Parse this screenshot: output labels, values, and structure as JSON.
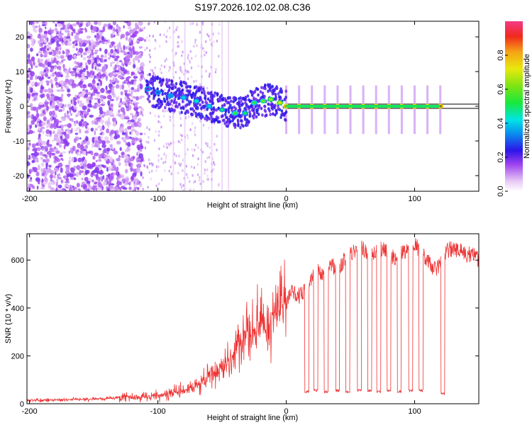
{
  "chart_data": [
    {
      "type": "heatmap",
      "title": "S197.2026.102.02.08.C36",
      "xlabel": "Height of straight line (km)",
      "ylabel": "Frequency (Hz)",
      "xlim": [
        -202,
        150
      ],
      "ylim": [
        -24.5,
        24.5
      ],
      "x_ticks": [
        -200,
        -100,
        0,
        100
      ],
      "x_tick_labels": [
        "-200",
        "-100",
        "0",
        "100"
      ],
      "y_ticks": [
        -20,
        -10,
        0,
        10,
        20
      ],
      "y_tick_labels": [
        "-20",
        "-10",
        "0",
        "10",
        "20"
      ],
      "reference_line_y": 0,
      "colorbar": {
        "label": "Normalized spectral amplitude",
        "range": [
          0,
          1
        ],
        "ticks": [
          0.0,
          0.2,
          0.4,
          0.6,
          0.8
        ],
        "tick_labels": [
          "0.0",
          "0.2",
          "0.4",
          "0.6",
          "0.8"
        ]
      },
      "tone_track": {
        "x": [
          -108,
          -100,
          -90,
          -80,
          -70,
          -60,
          -50,
          -40,
          -32,
          -25,
          -18,
          -12,
          -5,
          0,
          10,
          20,
          30,
          40,
          50,
          60,
          70,
          80,
          90,
          100,
          110,
          120
        ],
        "freq": [
          5,
          4,
          3,
          2.5,
          1.5,
          0,
          -1,
          -2,
          -2,
          1,
          1.5,
          2,
          1,
          0,
          0,
          0,
          0,
          0,
          0,
          0,
          0,
          0,
          0,
          0,
          0,
          0
        ],
        "amplitude": [
          0.2,
          0.3,
          0.35,
          0.4,
          0.45,
          0.4,
          0.5,
          0.55,
          0.5,
          0.55,
          0.6,
          0.65,
          0.7,
          0.85,
          0.9,
          0.9,
          0.9,
          0.9,
          0.9,
          0.9,
          0.9,
          0.9,
          0.9,
          0.9,
          0.9,
          0.9
        ]
      }
    },
    {
      "type": "line",
      "title": "",
      "xlabel": "Height of straight line (km)",
      "ylabel": "SNR (10 * v/v)",
      "xlim": [
        -202,
        150
      ],
      "ylim": [
        0,
        710
      ],
      "x_ticks": [
        -200,
        -100,
        0,
        100
      ],
      "x_tick_labels": [
        "-200",
        "-100",
        "0",
        "100"
      ],
      "y_ticks": [
        0,
        200,
        400,
        600
      ],
      "y_tick_labels": [
        "0",
        "200",
        "400",
        "600"
      ],
      "color": "#ee3333",
      "series": [
        {
          "name": "SNR",
          "x": [
            -202,
            -190,
            -180,
            -170,
            -160,
            -150,
            -140,
            -130,
            -125,
            -120,
            -110,
            -100,
            -90,
            -80,
            -70,
            -65,
            -60,
            -55,
            -50,
            -45,
            -40,
            -35,
            -30,
            -25,
            -20,
            -15,
            -10,
            -5,
            0,
            5,
            10,
            15,
            20,
            25,
            30,
            35,
            40,
            45,
            50,
            55,
            60,
            65,
            70,
            75,
            80,
            85,
            90,
            95,
            100,
            105,
            110,
            115,
            120,
            125,
            130,
            135,
            140,
            145,
            150
          ],
          "values": [
            15,
            15,
            15,
            18,
            18,
            20,
            22,
            25,
            35,
            20,
            28,
            35,
            45,
            55,
            70,
            95,
            110,
            130,
            150,
            175,
            220,
            250,
            280,
            320,
            330,
            310,
            380,
            400,
            420,
            470,
            450,
            480,
            530,
            560,
            520,
            580,
            560,
            600,
            620,
            640,
            650,
            600,
            640,
            650,
            620,
            610,
            640,
            630,
            660,
            640,
            600,
            560,
            580,
            640,
            650,
            640,
            620,
            630,
            600
          ],
          "dropouts": [
            {
              "x": 16,
              "value": 50
            },
            {
              "x": 23,
              "value": 55
            },
            {
              "x": 31,
              "value": 50
            },
            {
              "x": 40,
              "value": 55
            },
            {
              "x": 48,
              "value": 50
            },
            {
              "x": 57,
              "value": 55
            },
            {
              "x": 65,
              "value": 55
            },
            {
              "x": 72,
              "value": 50
            },
            {
              "x": 80,
              "value": 55
            },
            {
              "x": 88,
              "value": 50
            },
            {
              "x": 97,
              "value": 55
            },
            {
              "x": 105,
              "value": 55
            },
            {
              "x": 122,
              "value": 40
            }
          ]
        }
      ]
    }
  ]
}
